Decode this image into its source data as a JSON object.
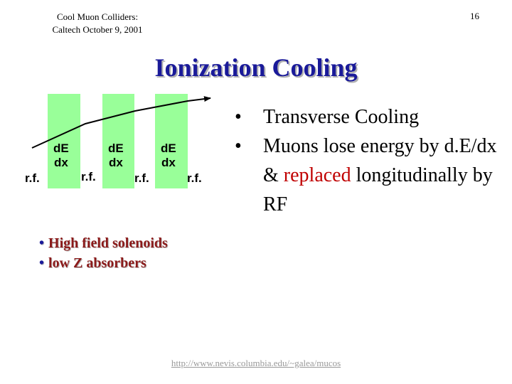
{
  "header": {
    "line1": "Cool Muon Colliders:",
    "line2": "Caltech October 9, 2001",
    "page_number": "16"
  },
  "title": "Ionization Cooling",
  "diagram": {
    "absorber_label_top": "dE",
    "absorber_label_bottom": "dx",
    "rf_label": "r.f.",
    "absorber_color": "#99ff99",
    "arrow_color": "#000000"
  },
  "bullets": [
    {
      "segments": [
        "Transverse Cooling"
      ]
    },
    {
      "segments": [
        "Muons lose energy by d.E/dx & ",
        "replaced",
        " longitudinally by RF"
      ]
    }
  ],
  "bottom_list": [
    "High field solenoids",
    "low Z absorbers"
  ],
  "footer": {
    "url": "http://www.nevis.columbia.edu/~galea/mucos"
  },
  "colors": {
    "title": "#1a1a99",
    "highlight_red": "#c00000",
    "bottom_text": "#8b1a1a"
  }
}
